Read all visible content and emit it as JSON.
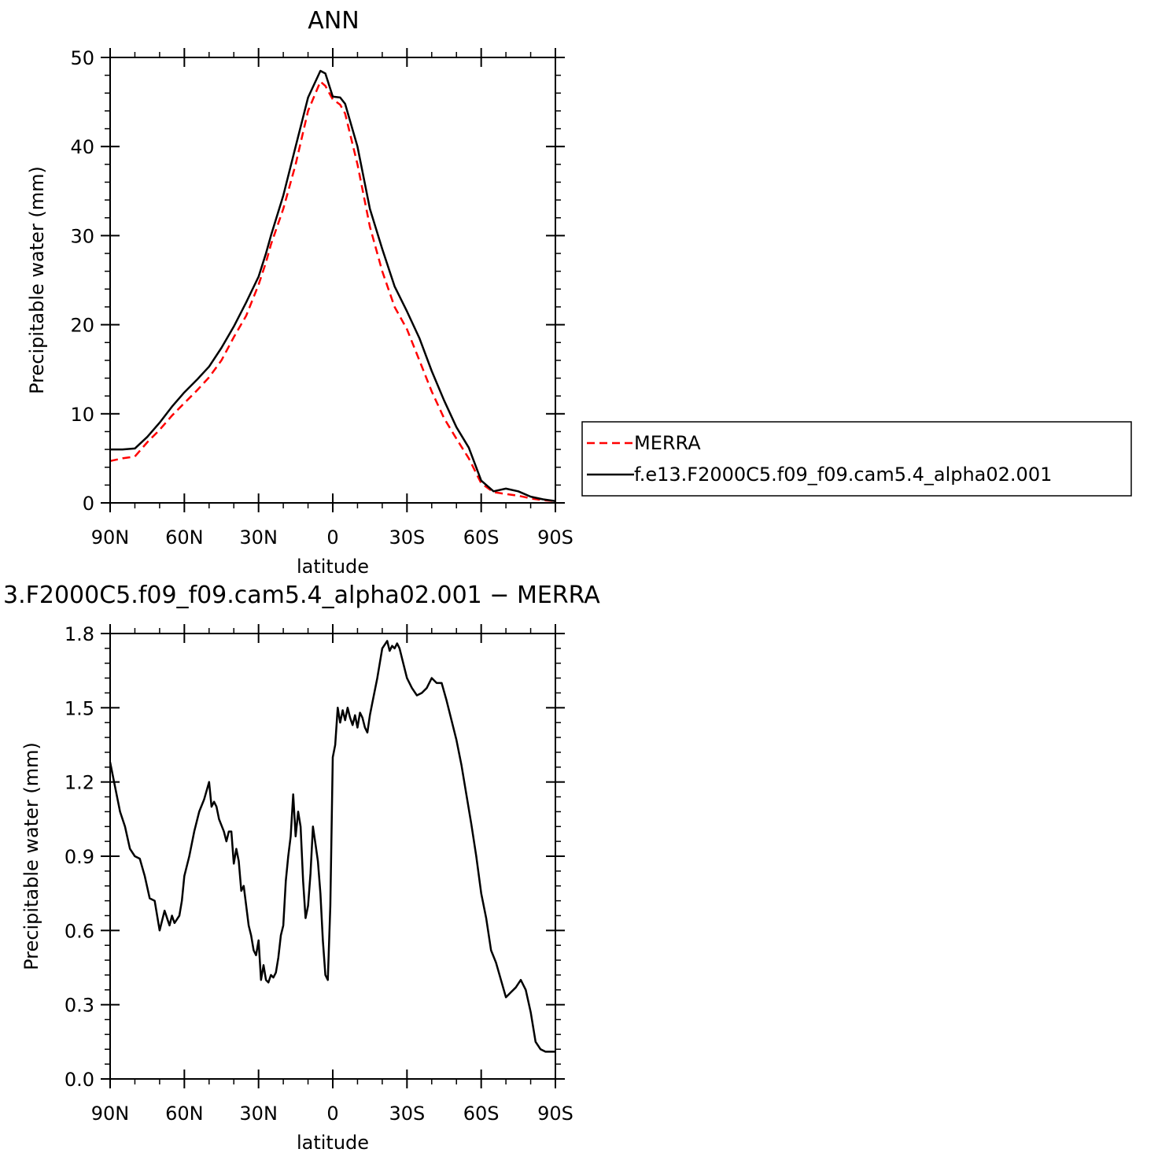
{
  "chart_data": [
    {
      "type": "line",
      "title": "ANN",
      "xlabel": "latitude",
      "ylabel": "Precipitable water (mm)",
      "xlim": [
        90,
        -90
      ],
      "ylim": [
        0,
        50
      ],
      "xticks": [
        90,
        60,
        30,
        0,
        -30,
        -60,
        -90
      ],
      "xtick_labels": [
        "90N",
        "60N",
        "30N",
        "0",
        "30S",
        "60S",
        "90S"
      ],
      "yticks": [
        0,
        10,
        20,
        30,
        40,
        50
      ],
      "ytick_labels": [
        "0",
        "10",
        "20",
        "30",
        "40",
        "50"
      ],
      "grid": false,
      "legend": "right",
      "series": [
        {
          "name": "MERRA",
          "color": "#ff0000",
          "dash": "dashed",
          "x": [
            90,
            85,
            80,
            75,
            70,
            65,
            60,
            55,
            50,
            45,
            40,
            35,
            30,
            27,
            25,
            20,
            15,
            10,
            5,
            3,
            0,
            -3,
            -5,
            -10,
            -15,
            -20,
            -25,
            -30,
            -35,
            -40,
            -45,
            -50,
            -55,
            -60,
            -65,
            -70,
            -75,
            -80,
            -85,
            -90
          ],
          "y": [
            4.7,
            5.0,
            5.2,
            6.8,
            8.2,
            9.8,
            11.2,
            12.6,
            14.1,
            16.0,
            18.6,
            21.0,
            24.5,
            27.0,
            29.0,
            33.0,
            38.0,
            44.0,
            47.3,
            46.8,
            45.3,
            44.7,
            43.7,
            38.0,
            31.0,
            26.0,
            22.0,
            19.5,
            16.0,
            12.5,
            9.5,
            7.2,
            5.0,
            2.2,
            1.2,
            1.0,
            0.8,
            0.5,
            0.3,
            0.2
          ]
        },
        {
          "name": "f.e13.F2000C5.f09_f09.cam5.4_alpha02.001",
          "color": "#000000",
          "dash": "solid",
          "x": [
            90,
            85,
            80,
            75,
            70,
            65,
            60,
            55,
            50,
            45,
            40,
            35,
            30,
            27,
            25,
            20,
            15,
            10,
            5,
            3,
            0,
            -3,
            -5,
            -10,
            -15,
            -20,
            -25,
            -30,
            -35,
            -40,
            -45,
            -50,
            -55,
            -60,
            -65,
            -70,
            -75,
            -80,
            -85,
            -90
          ],
          "y": [
            6.0,
            6.0,
            6.1,
            7.4,
            9.0,
            10.8,
            12.4,
            13.8,
            15.3,
            17.4,
            19.8,
            22.5,
            25.4,
            28.0,
            30.0,
            34.5,
            40.0,
            45.5,
            48.5,
            48.2,
            45.6,
            45.5,
            44.8,
            40.0,
            33.0,
            28.5,
            24.3,
            21.5,
            18.5,
            14.8,
            11.5,
            8.5,
            6.2,
            2.5,
            1.3,
            1.6,
            1.3,
            0.7,
            0.4,
            0.2
          ]
        }
      ]
    },
    {
      "type": "line",
      "title": "3.F2000C5.f09_f09.cam5.4_alpha02.001 − MERRA",
      "xlabel": "latitude",
      "ylabel": "Precipitable water (mm)",
      "xlim": [
        90,
        -90
      ],
      "ylim": [
        0.0,
        1.8
      ],
      "xticks": [
        90,
        60,
        30,
        0,
        -30,
        -60,
        -90
      ],
      "xtick_labels": [
        "90N",
        "60N",
        "30N",
        "0",
        "30S",
        "60S",
        "90S"
      ],
      "yticks": [
        0.0,
        0.3,
        0.6,
        0.9,
        1.2,
        1.5,
        1.8
      ],
      "ytick_labels": [
        "0.0",
        "0.3",
        "0.6",
        "0.9",
        "1.2",
        "1.5",
        "1.8"
      ],
      "grid": false,
      "series": [
        {
          "color": "#000000",
          "dash": "solid",
          "x": [
            90,
            88,
            86,
            84,
            82,
            80,
            78,
            76,
            74,
            72,
            70,
            68,
            66,
            65,
            64,
            62,
            61,
            60,
            58,
            56,
            54,
            52,
            50,
            49,
            48,
            47,
            46,
            44,
            43,
            42,
            41,
            40,
            39,
            38,
            37,
            36,
            34,
            33,
            32,
            31,
            30,
            29,
            28,
            27,
            26,
            25,
            24,
            23,
            22,
            21,
            20,
            19,
            18,
            17,
            16,
            15,
            14,
            13,
            12,
            11,
            10,
            9,
            8,
            7,
            6,
            5,
            4,
            3,
            2,
            1,
            0,
            -1,
            -2,
            -3,
            -4,
            -5,
            -6,
            -7,
            -8,
            -9,
            -10,
            -11,
            -12,
            -13,
            -14,
            -15,
            -16,
            -18,
            -20,
            -22,
            -23,
            -24,
            -25,
            -26,
            -27,
            -28,
            -30,
            -32,
            -34,
            -36,
            -38,
            -40,
            -42,
            -44,
            -46,
            -48,
            -50,
            -52,
            -54,
            -56,
            -58,
            -60,
            -62,
            -64,
            -66,
            -68,
            -70,
            -72,
            -74,
            -76,
            -78,
            -80,
            -82,
            -84,
            -86,
            -88,
            -90
          ],
          "y": [
            1.28,
            1.18,
            1.08,
            1.02,
            0.93,
            0.9,
            0.89,
            0.82,
            0.73,
            0.72,
            0.6,
            0.68,
            0.62,
            0.66,
            0.63,
            0.66,
            0.72,
            0.82,
            0.9,
            1.0,
            1.08,
            1.13,
            1.2,
            1.1,
            1.12,
            1.1,
            1.05,
            1.0,
            0.96,
            1.0,
            1.0,
            0.87,
            0.93,
            0.88,
            0.76,
            0.78,
            0.62,
            0.58,
            0.52,
            0.5,
            0.56,
            0.4,
            0.46,
            0.4,
            0.39,
            0.42,
            0.41,
            0.43,
            0.49,
            0.58,
            0.62,
            0.8,
            0.9,
            0.98,
            1.15,
            0.98,
            1.08,
            1.02,
            0.8,
            0.65,
            0.7,
            0.83,
            1.02,
            0.95,
            0.88,
            0.75,
            0.56,
            0.42,
            0.4,
            0.7,
            1.3,
            1.35,
            1.5,
            1.44,
            1.49,
            1.45,
            1.5,
            1.46,
            1.43,
            1.47,
            1.42,
            1.48,
            1.46,
            1.42,
            1.4,
            1.47,
            1.52,
            1.62,
            1.74,
            1.77,
            1.73,
            1.75,
            1.74,
            1.76,
            1.74,
            1.7,
            1.62,
            1.58,
            1.55,
            1.56,
            1.58,
            1.62,
            1.6,
            1.6,
            1.53,
            1.45,
            1.37,
            1.27,
            1.15,
            1.03,
            0.9,
            0.75,
            0.65,
            0.52,
            0.47,
            0.4,
            0.33,
            0.35,
            0.37,
            0.4,
            0.36,
            0.27,
            0.15,
            0.12,
            0.11,
            0.11,
            0.11
          ]
        }
      ]
    }
  ]
}
